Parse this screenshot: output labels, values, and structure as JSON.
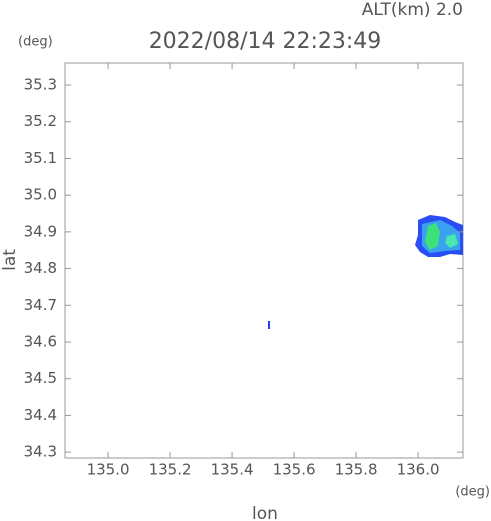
{
  "chart_data": {
    "type": "map",
    "title": "2022/08/14 22:23:49",
    "subtitle": "ALT(km) 2.0",
    "x_label": "lon",
    "y_label": "lat",
    "x_unit": "(deg)",
    "y_unit": "(deg)",
    "xlim": [
      134.861,
      136.145
    ],
    "ylim": [
      34.284,
      35.36
    ],
    "xticks": [
      {
        "value": 135.0,
        "label": "135.0"
      },
      135.2,
      135.4,
      135.6,
      135.8,
      {
        "value": 136.0,
        "label": "136.0"
      }
    ],
    "yticks": [
      34.3,
      34.4,
      34.5,
      34.6,
      34.7,
      34.8,
      34.9,
      {
        "value": 35.0,
        "label": "35.0"
      },
      35.1,
      35.2,
      35.3
    ]
  }
}
